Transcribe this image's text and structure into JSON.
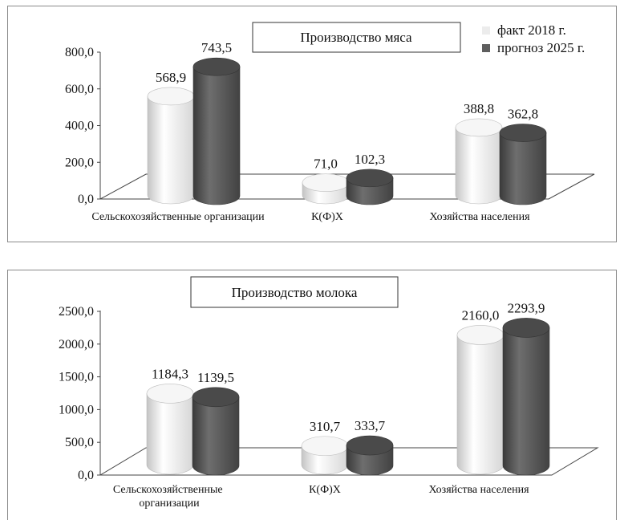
{
  "chart_data": [
    {
      "type": "bar",
      "title": "Производство мяса",
      "categories": [
        "Сельскохозяйственные организации",
        "К(Ф)Х",
        "Хозяйства населения"
      ],
      "series": [
        {
          "name": "факт 2018 г.",
          "values": [
            568.9,
            71.0,
            388.8
          ],
          "labels": [
            "568,9",
            "71,0",
            "388,8"
          ],
          "color": "#ececec"
        },
        {
          "name": "прогноз 2025 г.",
          "values": [
            743.5,
            102.3,
            362.8
          ],
          "labels": [
            "743,5",
            "102,3",
            "362,8"
          ],
          "color": "#5e5e5e"
        }
      ],
      "ylim": [
        0,
        800
      ],
      "ticks": [
        0,
        200,
        400,
        600,
        800
      ],
      "tick_labels": [
        "0,0",
        "200,0",
        "400,0",
        "600,0",
        "800,0"
      ],
      "legend": "top-right",
      "grid": false
    },
    {
      "type": "bar",
      "title": "Производство молока",
      "categories": [
        "Сельскохозяйственные организации",
        "К(Ф)Х",
        "Хозяйства населения"
      ],
      "series": [
        {
          "name": "факт 2018 г.",
          "values": [
            1184.3,
            310.7,
            2160.0
          ],
          "labels": [
            "1184,3",
            "310,7",
            "2160,0"
          ],
          "color": "#ececec"
        },
        {
          "name": "прогноз 2025 г.",
          "values": [
            1139.5,
            333.7,
            2293.9
          ],
          "labels": [
            "1139,5",
            "333,7",
            "2293,9"
          ],
          "color": "#5e5e5e"
        }
      ],
      "ylim": [
        0,
        2500
      ],
      "ticks": [
        0,
        500,
        1000,
        1500,
        2000,
        2500
      ],
      "tick_labels": [
        "0,0",
        "500,0",
        "1000,0",
        "1500,0",
        "2000,0",
        "2500,0"
      ],
      "legend": "none",
      "grid": false
    }
  ]
}
